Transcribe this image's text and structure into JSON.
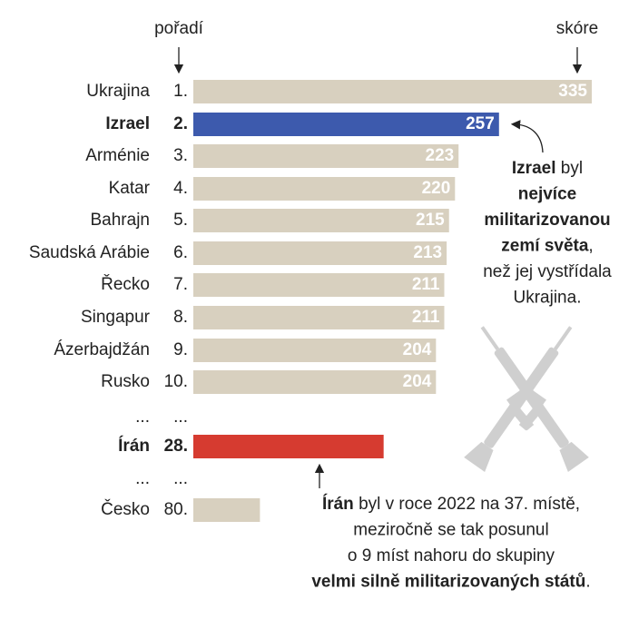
{
  "chart_data": {
    "type": "bar",
    "rank_header": "pořadí",
    "value_header": "skóre",
    "categories": [
      "Ukrajina",
      "Izrael",
      "Arménie",
      "Katar",
      "Bahrajn",
      "Saudská Arábie",
      "Řecko",
      "Singapur",
      "Ázerbajdžán",
      "Rusko",
      "...",
      "Írán",
      "...",
      "Česko"
    ],
    "ranks": [
      "1.",
      "2.",
      "3.",
      "4.",
      "5.",
      "6.",
      "7.",
      "8.",
      "9.",
      "10.",
      "...",
      "28.",
      "...",
      "80."
    ],
    "values": [
      335,
      257,
      223,
      220,
      215,
      213,
      211,
      211,
      204,
      204,
      null,
      160,
      null,
      56
    ],
    "labeled": [
      true,
      true,
      true,
      true,
      true,
      true,
      true,
      true,
      true,
      true,
      false,
      false,
      false,
      false
    ],
    "color": "#d8d0bf",
    "bar_colors": [
      "#d8d0bf",
      "#3d5aad",
      "#d8d0bf",
      "#d8d0bf",
      "#d8d0bf",
      "#d8d0bf",
      "#d8d0bf",
      "#d8d0bf",
      "#d8d0bf",
      "#d8d0bf",
      null,
      "#d63b30",
      null,
      "#d8d0bf"
    ],
    "xlim": [
      0,
      335
    ],
    "annotations": [
      [
        [
          {
            "text": "Izrael",
            "bold": true
          },
          {
            "text": " byl",
            "bold": false
          }
        ],
        [
          {
            "text": "nejvíce",
            "bold": true
          }
        ],
        [
          {
            "text": "militarizovanou",
            "bold": true
          }
        ],
        [
          {
            "text": "zemí světa",
            "bold": true
          },
          {
            "text": ",",
            "bold": false
          }
        ],
        [
          {
            "text": "než jej vystřídala",
            "bold": false
          }
        ],
        [
          {
            "text": "Ukrajina.",
            "bold": false
          }
        ]
      ],
      [
        [
          {
            "text": "Írán",
            "bold": true
          },
          {
            "text": " byl v roce 2022 na 37. místě,",
            "bold": false
          }
        ],
        [
          {
            "text": "meziročně se tak posunul",
            "bold": false
          }
        ],
        [
          {
            "text": "o 9 míst nahoru do skupiny",
            "bold": false
          }
        ],
        [
          {
            "text": "velmi silně militarizovaných států",
            "bold": true
          },
          {
            "text": ".",
            "bold": false
          }
        ]
      ]
    ]
  }
}
